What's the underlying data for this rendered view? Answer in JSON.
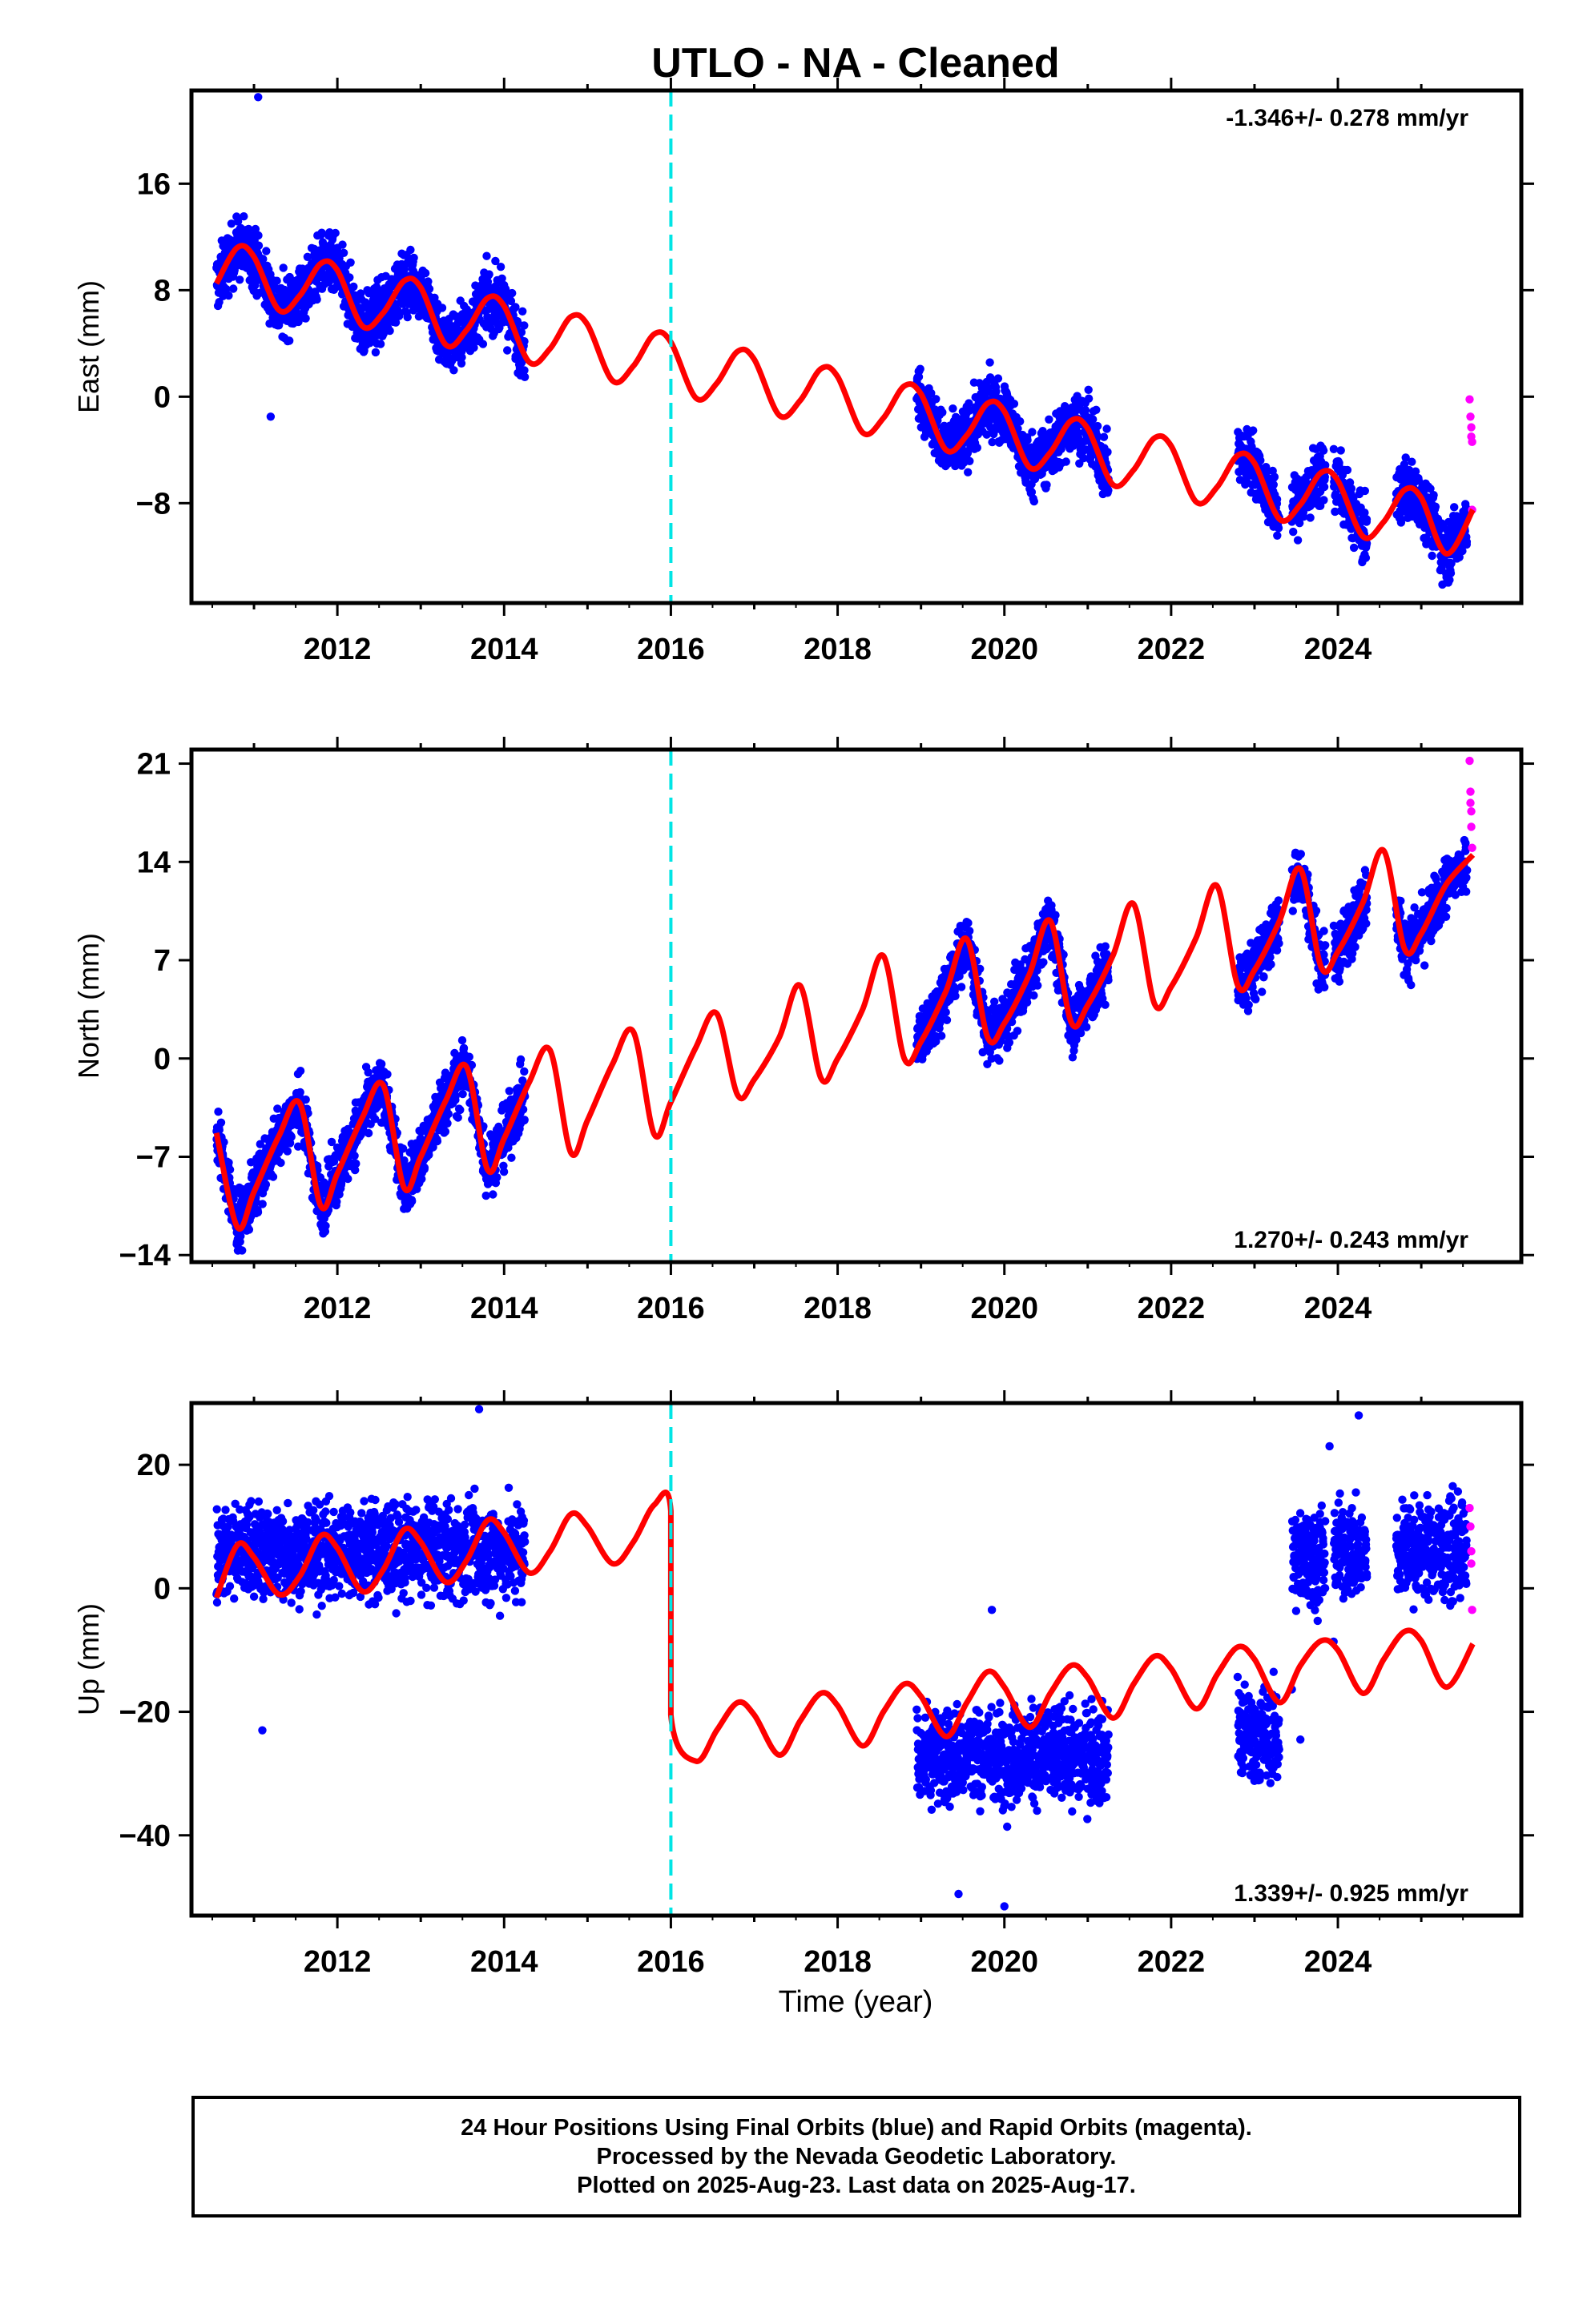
{
  "figure": {
    "title": "UTLO  - NA - Cleaned",
    "xlabel": "Time (year)",
    "footer": [
      "24 Hour Positions Using Final Orbits (blue) and Rapid Orbits (magenta).",
      "Processed by the Nevada Geodetic Laboratory.",
      "Plotted on 2025-Aug-23. Last data on 2025-Aug-17."
    ],
    "colors": {
      "final_orbits": "#0000ff",
      "rapid_orbits": "#ff00ff",
      "model_fit": "#ff0000",
      "equipment_change": "#00e5e5"
    }
  },
  "chart_data": [
    {
      "type": "scatter",
      "component": "East",
      "ylabel": "East (mm)",
      "annotation": "-1.346+/- 0.278 mm/yr",
      "annotation_position": "top-right",
      "xlim": [
        2010.25,
        2026.2
      ],
      "ylim": [
        -15.5,
        23
      ],
      "xticks": [
        2012,
        2014,
        2016,
        2018,
        2020,
        2022,
        2024
      ],
      "yticks": [
        16,
        8,
        0,
        -8
      ],
      "grid": false,
      "offset_year": 2016.0,
      "trend_mm_per_yr": -1.346,
      "fit": {
        "x": [
          2010.55,
          2010.8,
          2011.0,
          2011.3,
          2011.55,
          2011.8,
          2012.0,
          2012.3,
          2012.55,
          2012.8,
          2013.0,
          2013.3,
          2013.55,
          2013.8,
          2014.0,
          2014.3,
          2014.55,
          2014.8,
          2015.0,
          2015.3,
          2015.55,
          2015.8,
          2016.0,
          2016.3,
          2016.55,
          2016.8,
          2017.0,
          2017.3,
          2017.55,
          2017.8,
          2018.0,
          2018.3,
          2018.55,
          2018.8,
          2019.0,
          2019.3,
          2019.55,
          2019.8,
          2020.0,
          2020.3,
          2020.55,
          2020.8,
          2021.0,
          2021.3,
          2021.55,
          2021.8,
          2022.0,
          2022.3,
          2022.55,
          2022.8,
          2023.0,
          2023.3,
          2023.55,
          2023.8,
          2024.0,
          2024.3,
          2024.55,
          2024.8,
          2025.0,
          2025.3,
          2025.62
        ],
        "y": [
          8.5,
          11.2,
          10.5,
          6.5,
          7.6,
          10.0,
          9.5,
          5.3,
          6.3,
          8.7,
          8.2,
          3.9,
          5.0,
          7.4,
          6.8,
          2.6,
          3.6,
          6.0,
          5.4,
          1.2,
          2.3,
          4.7,
          4.1,
          -0.1,
          1.0,
          3.4,
          2.8,
          -1.4,
          -0.3,
          2.1,
          1.5,
          -2.7,
          -1.6,
          0.8,
          0.2,
          -4.0,
          -2.9,
          -0.5,
          -1.1,
          -5.3,
          -4.2,
          -1.8,
          -2.4,
          -6.6,
          -5.5,
          -3.1,
          -3.7,
          -7.9,
          -6.8,
          -4.4,
          -5.0,
          -9.2,
          -8.1,
          -5.7,
          -6.3,
          -10.5,
          -9.4,
          -7.0,
          -7.6,
          -11.8,
          -8.5
        ]
      },
      "data_segments": [
        {
          "x0": 2010.55,
          "x1": 2014.25,
          "spread": 1.6
        },
        {
          "x0": 2018.95,
          "x1": 2021.25,
          "spread": 1.6
        },
        {
          "x0": 2022.8,
          "x1": 2023.3,
          "spread": 1.6
        },
        {
          "x0": 2023.45,
          "x1": 2023.85,
          "spread": 1.6
        },
        {
          "x0": 2023.95,
          "x1": 2024.35,
          "spread": 1.6
        },
        {
          "x0": 2024.7,
          "x1": 2025.55,
          "spread": 1.6
        }
      ],
      "rapid_points": [
        [
          2025.58,
          -0.2
        ],
        [
          2025.59,
          -1.5
        ],
        [
          2025.6,
          -2.3
        ],
        [
          2025.6,
          -3.0
        ],
        [
          2025.61,
          -3.4
        ],
        [
          2025.61,
          -8.5
        ]
      ],
      "outliers": [
        [
          2011.05,
          22.5
        ],
        [
          2011.2,
          -1.5
        ]
      ]
    },
    {
      "type": "scatter",
      "component": "North",
      "ylabel": "North (mm)",
      "annotation": "1.270+/- 0.243 mm/yr",
      "annotation_position": "bottom-right",
      "xlim": [
        2010.25,
        2026.2
      ],
      "ylim": [
        -14.5,
        22
      ],
      "xticks": [
        2012,
        2014,
        2016,
        2018,
        2020,
        2022,
        2024
      ],
      "yticks": [
        21,
        14,
        7,
        0,
        -7,
        -14
      ],
      "grid": false,
      "offset_year": 2016.0,
      "trend_mm_per_yr": 1.27,
      "fit": {
        "x": [
          2010.55,
          2010.8,
          2011.0,
          2011.3,
          2011.55,
          2011.8,
          2012.0,
          2012.3,
          2012.55,
          2012.8,
          2013.0,
          2013.3,
          2013.55,
          2013.8,
          2014.0,
          2014.3,
          2014.55,
          2014.8,
          2015.0,
          2015.3,
          2015.55,
          2015.8,
          2016.0,
          2016.3,
          2016.55,
          2016.8,
          2017.0,
          2017.3,
          2017.55,
          2017.8,
          2018.0,
          2018.3,
          2018.55,
          2018.8,
          2019.0,
          2019.3,
          2019.55,
          2019.8,
          2020.0,
          2020.3,
          2020.55,
          2020.8,
          2021.0,
          2021.3,
          2021.55,
          2021.8,
          2022.0,
          2022.3,
          2022.55,
          2022.8,
          2023.0,
          2023.3,
          2023.55,
          2023.8,
          2024.0,
          2024.3,
          2024.55,
          2024.8,
          2025.0,
          2025.3,
          2025.62
        ],
        "y": [
          -5.3,
          -12.0,
          -9.5,
          -5.5,
          -3.2,
          -10.5,
          -8.2,
          -4.2,
          -1.9,
          -9.2,
          -7.0,
          -3.0,
          -0.6,
          -7.9,
          -5.7,
          -1.7,
          0.6,
          -6.7,
          -4.4,
          -0.4,
          1.9,
          -5.4,
          -3.1,
          0.8,
          3.2,
          -2.6,
          -1.5,
          1.5,
          5.2,
          -1.4,
          0.0,
          3.5,
          7.3,
          0.0,
          1.2,
          4.8,
          8.5,
          1.5,
          2.5,
          6.0,
          9.8,
          2.6,
          3.8,
          7.3,
          11.0,
          3.9,
          5.1,
          8.6,
          12.3,
          5.2,
          6.3,
          9.8,
          13.5,
          6.5,
          7.6,
          11.1,
          14.8,
          7.8,
          8.9,
          12.4,
          14.5
        ]
      },
      "data_segments": [
        {
          "x0": 2010.55,
          "x1": 2014.25,
          "spread": 1.5
        },
        {
          "x0": 2018.95,
          "x1": 2021.25,
          "spread": 1.5
        },
        {
          "x0": 2022.8,
          "x1": 2023.3,
          "spread": 1.5
        },
        {
          "x0": 2023.45,
          "x1": 2023.85,
          "spread": 1.5
        },
        {
          "x0": 2023.95,
          "x1": 2024.35,
          "spread": 1.5
        },
        {
          "x0": 2024.7,
          "x1": 2025.55,
          "spread": 1.5
        }
      ],
      "rapid_points": [
        [
          2025.58,
          21.2
        ],
        [
          2025.59,
          19.0
        ],
        [
          2025.59,
          18.2
        ],
        [
          2025.6,
          17.6
        ],
        [
          2025.6,
          16.5
        ],
        [
          2025.61,
          15.0
        ]
      ],
      "outliers": []
    },
    {
      "type": "scatter",
      "component": "Up",
      "ylabel": "Up (mm)",
      "annotation": "1.339+/- 0.925 mm/yr",
      "annotation_position": "bottom-right",
      "xlim": [
        2010.25,
        2026.2
      ],
      "ylim": [
        -53,
        30
      ],
      "xticks": [
        2012,
        2014,
        2016,
        2018,
        2020,
        2022,
        2024
      ],
      "yticks": [
        20,
        0,
        -20,
        -40
      ],
      "grid": false,
      "offset_year": 2016.0,
      "trend_mm_per_yr": 1.339,
      "fit": {
        "x": [
          2010.55,
          2010.8,
          2011.0,
          2011.3,
          2011.55,
          2011.8,
          2012.0,
          2012.3,
          2012.55,
          2012.8,
          2013.0,
          2013.3,
          2013.55,
          2013.8,
          2014.0,
          2014.3,
          2014.55,
          2014.8,
          2015.0,
          2015.3,
          2015.55,
          2015.8,
          2016.0,
          2016.0,
          2016.3,
          2016.55,
          2016.8,
          2017.0,
          2017.3,
          2017.55,
          2017.8,
          2018.0,
          2018.3,
          2018.55,
          2018.8,
          2019.0,
          2019.3,
          2019.55,
          2019.8,
          2020.0,
          2020.3,
          2020.55,
          2020.8,
          2021.0,
          2021.3,
          2021.55,
          2021.8,
          2022.0,
          2022.3,
          2022.55,
          2022.8,
          2023.0,
          2023.3,
          2023.55,
          2023.8,
          2024.0,
          2024.3,
          2024.55,
          2024.8,
          2025.0,
          2025.3,
          2025.62
        ],
        "y": [
          -1.5,
          7.0,
          5.0,
          -1.0,
          2.0,
          8.5,
          6.5,
          -0.5,
          3.0,
          9.5,
          7.5,
          1.0,
          4.5,
          11.0,
          9.0,
          2.5,
          6.0,
          12.0,
          10.0,
          4.0,
          7.5,
          13.5,
          12.5,
          -20.5,
          -28.0,
          -23.0,
          -18.5,
          -20.5,
          -27.0,
          -21.5,
          -17.0,
          -19.0,
          -25.5,
          -20.0,
          -15.5,
          -17.5,
          -24.0,
          -18.5,
          -13.5,
          -16.0,
          -22.5,
          -17.0,
          -12.5,
          -14.5,
          -21.0,
          -15.5,
          -11.0,
          -13.0,
          -19.5,
          -14.0,
          -9.5,
          -11.5,
          -18.5,
          -12.5,
          -8.5,
          -10.0,
          -17.0,
          -11.5,
          -7.0,
          -8.5,
          -16.0,
          -9.0
        ]
      },
      "data_segments": [
        {
          "x0": 2010.55,
          "x1": 2014.25,
          "spread": 5.5
        },
        {
          "x0": 2018.95,
          "x1": 2021.25,
          "spread": 5.5
        },
        {
          "x0": 2022.8,
          "x1": 2023.3,
          "spread": 5.5
        },
        {
          "x0": 2023.45,
          "x1": 2023.85,
          "spread": 5.5
        },
        {
          "x0": 2023.95,
          "x1": 2024.35,
          "spread": 5.5
        },
        {
          "x0": 2024.7,
          "x1": 2025.55,
          "spread": 5.5
        }
      ],
      "segment_level": [
        {
          "x0": 2010.55,
          "x1": 2014.25,
          "y": 6
        },
        {
          "x0": 2018.95,
          "x1": 2021.25,
          "y": -27
        },
        {
          "x0": 2022.8,
          "x1": 2023.3,
          "y": -24
        },
        {
          "x0": 2023.45,
          "x1": 2023.85,
          "y": 5
        },
        {
          "x0": 2023.95,
          "x1": 2024.35,
          "y": 6
        },
        {
          "x0": 2024.7,
          "x1": 2025.55,
          "y": 6
        }
      ],
      "rapid_points": [
        [
          2025.58,
          13.0
        ],
        [
          2025.59,
          10.0
        ],
        [
          2025.6,
          6.0
        ],
        [
          2025.6,
          4.0
        ],
        [
          2025.61,
          -3.5
        ]
      ],
      "outliers": [
        [
          2011.1,
          -23.0
        ],
        [
          2019.45,
          -49.5
        ],
        [
          2020.0,
          -51.5
        ],
        [
          2019.85,
          -3.5
        ],
        [
          2023.55,
          -24.5
        ],
        [
          2023.9,
          23.0
        ],
        [
          2024.25,
          28.0
        ],
        [
          2013.7,
          29.0
        ]
      ]
    }
  ]
}
